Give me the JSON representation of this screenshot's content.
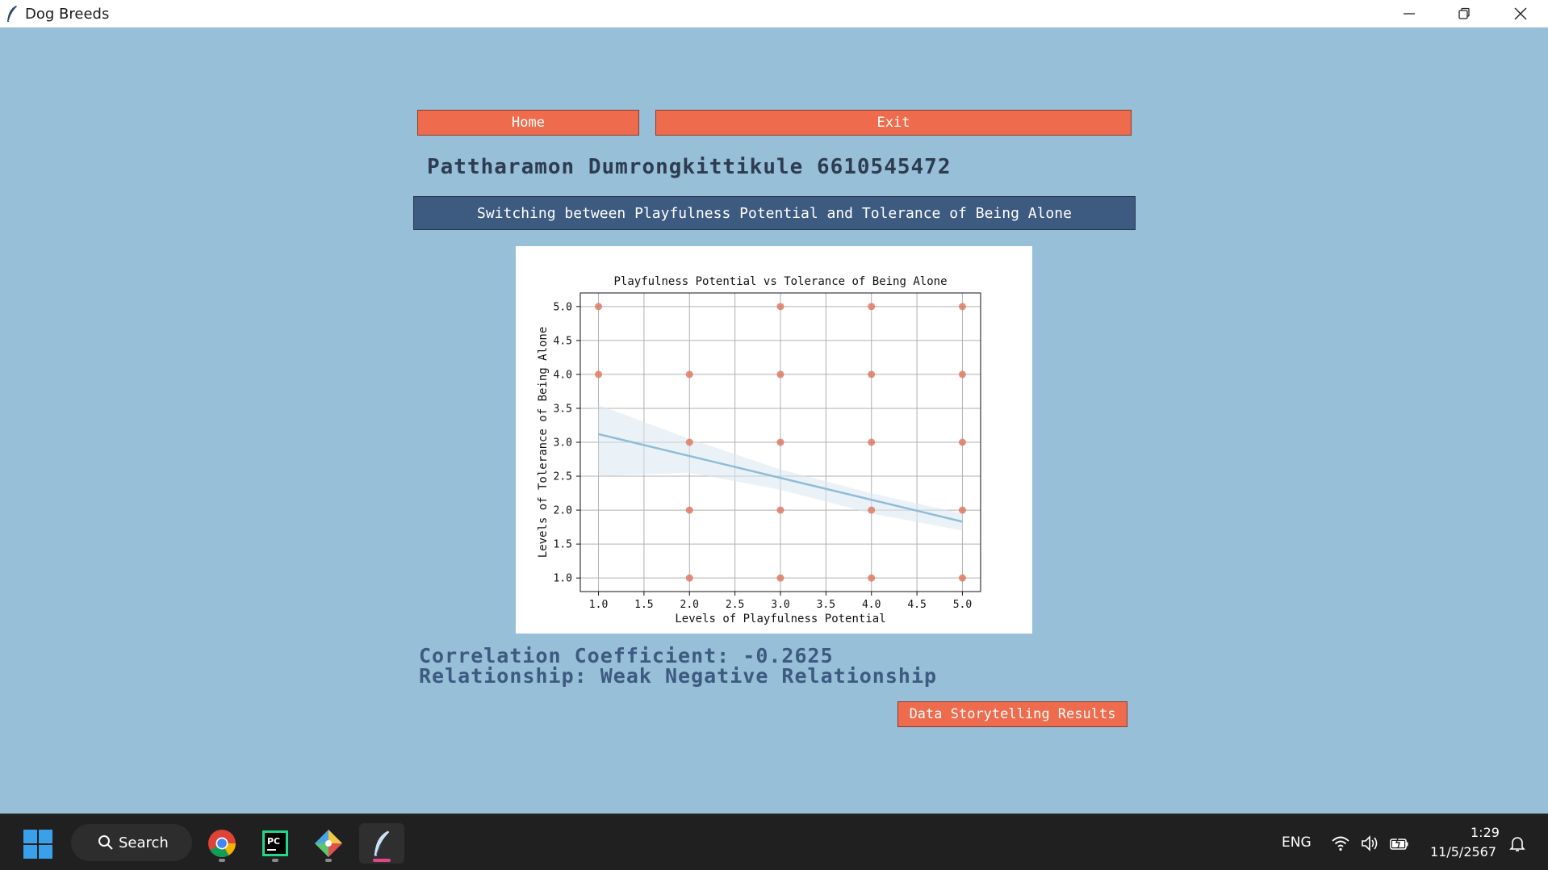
{
  "window": {
    "title": "Dog Breeds"
  },
  "nav": {
    "home_label": "Home",
    "exit_label": "Exit"
  },
  "student": {
    "name_line": "Pattharamon Dumrongkittikule 6610545472"
  },
  "switch_button": {
    "label": "Switching between Playfulness Potential and Tolerance of Being Alone"
  },
  "chart_data": {
    "type": "scatter",
    "title": "Playfulness Potential vs Tolerance of Being Alone",
    "xlabel": "Levels of Playfulness Potential",
    "ylabel": "Levels of Tolerance of Being Alone",
    "xlim": [
      0.8,
      5.2
    ],
    "ylim": [
      0.8,
      5.2
    ],
    "xticks": [
      "1.0",
      "1.5",
      "2.0",
      "2.5",
      "3.0",
      "3.5",
      "4.0",
      "4.5",
      "5.0"
    ],
    "yticks": [
      "1.0",
      "1.5",
      "2.0",
      "2.5",
      "3.0",
      "3.5",
      "4.0",
      "4.5",
      "5.0"
    ],
    "grid": true,
    "points": [
      [
        1,
        5
      ],
      [
        1,
        4
      ],
      [
        2,
        4
      ],
      [
        2,
        3
      ],
      [
        2,
        2
      ],
      [
        2,
        1
      ],
      [
        3,
        5
      ],
      [
        3,
        4
      ],
      [
        3,
        3
      ],
      [
        3,
        2
      ],
      [
        3,
        1
      ],
      [
        4,
        5
      ],
      [
        4,
        4
      ],
      [
        4,
        3
      ],
      [
        4,
        2
      ],
      [
        4,
        1
      ],
      [
        5,
        5
      ],
      [
        5,
        4
      ],
      [
        5,
        3
      ],
      [
        5,
        2
      ],
      [
        5,
        1
      ]
    ],
    "regression": {
      "x": [
        1.0,
        5.0
      ],
      "y": [
        3.12,
        1.83
      ]
    },
    "confidence_band": {
      "x": [
        1.0,
        2.0,
        3.0,
        4.0,
        5.0
      ],
      "upper": [
        3.55,
        3.05,
        2.6,
        2.25,
        1.95
      ],
      "lower": [
        2.5,
        2.55,
        2.3,
        1.95,
        1.7
      ]
    },
    "colors": {
      "points": "#e07a64",
      "line": "#8fbcd8",
      "band": "#dbe7f1"
    }
  },
  "results": {
    "correlation_line": "Correlation Coefficient: -0.2625",
    "relationship_line": "Relationship: Weak Negative Relationship"
  },
  "storytelling_button": {
    "label": "Data Storytelling Results"
  },
  "taskbar": {
    "search_label": "Search",
    "lang": "ENG",
    "time": "1:29",
    "date": "11/5/2567"
  },
  "colors": {
    "background": "#97bfd8",
    "orange_button": "#ee6c4d",
    "navy_button": "#3d5a80",
    "text_dark": "#2d3c50"
  },
  "icons": {
    "app": "feather-icon",
    "minimize": "minimize-icon",
    "restore": "restore-icon",
    "close": "close-icon",
    "start": "windows-start-icon",
    "search": "search-icon",
    "chrome": "chrome-icon",
    "pycharm": "pycharm-icon",
    "git": "git-icon",
    "python_app": "feather-icon",
    "wifi": "wifi-icon",
    "volume": "volume-icon",
    "battery": "battery-icon",
    "notifications": "bell-icon"
  }
}
